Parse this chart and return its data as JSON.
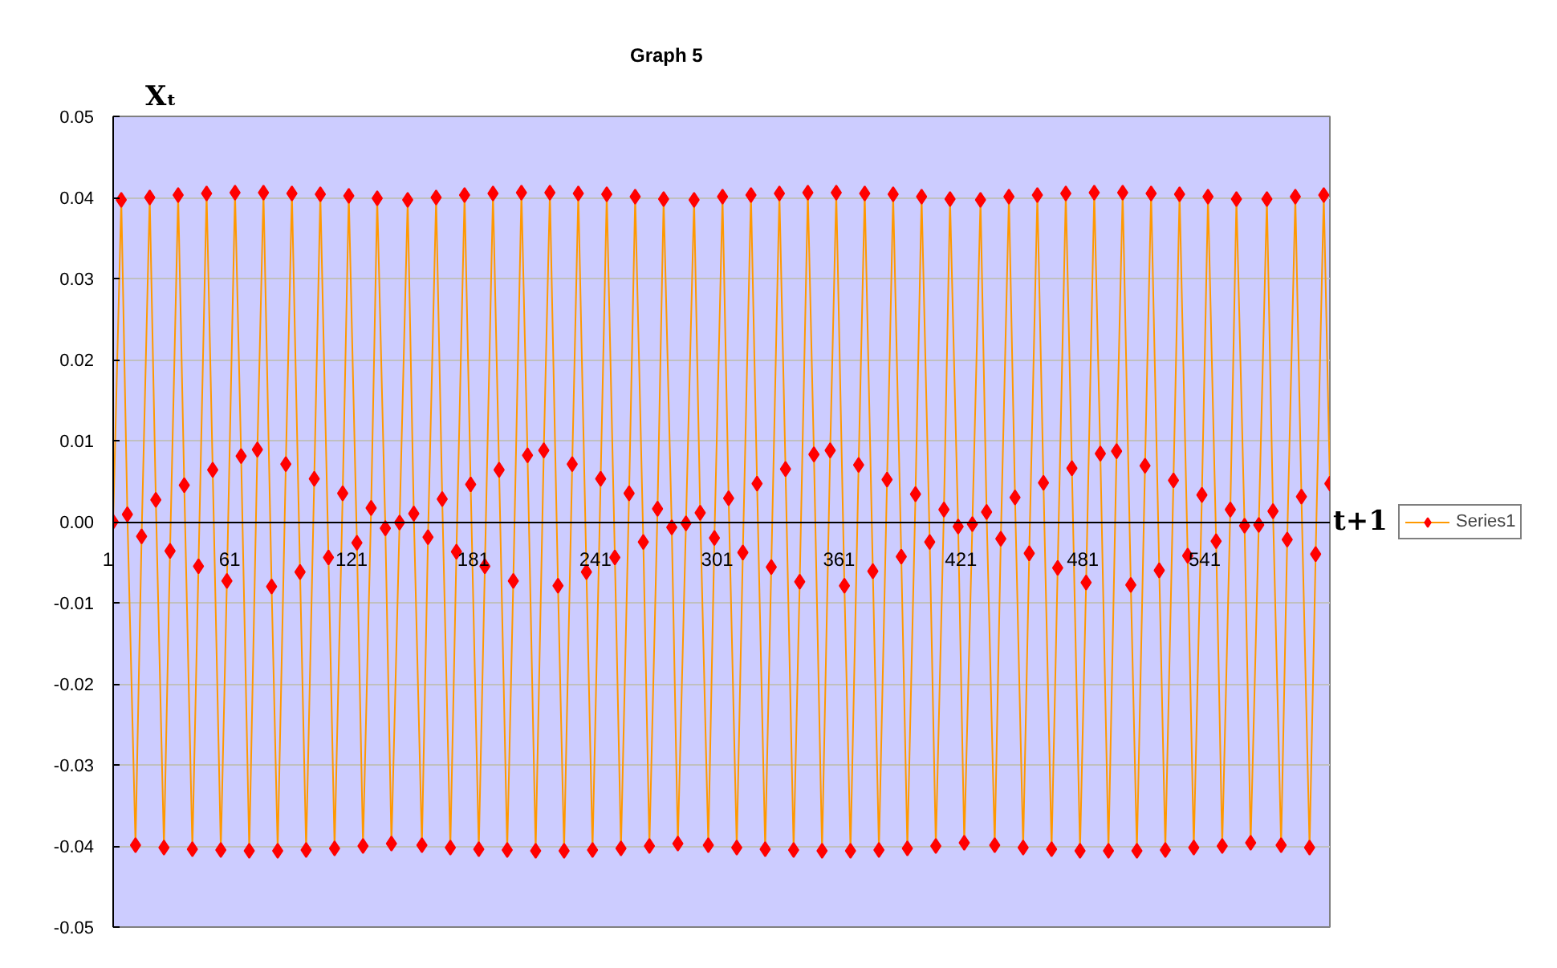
{
  "chart_data": {
    "type": "line",
    "title": "Graph 5",
    "xlabel": "t+1",
    "ylabel": "Xₜ",
    "x": [
      1,
      5,
      8,
      12,
      15,
      19,
      22,
      26,
      29,
      33,
      36,
      40,
      43,
      47,
      50,
      54,
      57,
      61,
      64,
      68,
      72,
      75,
      79,
      82,
      86,
      89,
      93,
      96,
      100,
      103,
      107,
      110,
      114,
      117,
      121,
      124,
      128,
      131,
      135,
      138,
      142,
      146,
      149,
      153,
      156,
      160,
      163,
      167,
      170,
      174,
      177,
      181,
      184,
      188,
      191,
      195,
      198,
      202,
      205,
      209,
      213,
      216,
      220,
      223,
      227,
      230,
      234,
      237,
      241,
      244,
      248,
      251,
      255,
      258,
      262,
      265,
      269,
      272,
      276,
      279,
      283,
      287,
      290,
      294,
      297,
      301,
      304,
      308,
      311,
      315,
      318,
      322,
      325,
      329,
      332,
      336,
      339,
      343,
      346,
      350,
      354,
      357,
      361,
      364,
      368,
      371,
      375,
      378,
      382,
      385,
      389,
      392,
      396,
      399,
      403,
      406,
      410,
      413,
      417,
      420,
      424,
      428,
      431,
      435,
      438,
      442,
      445,
      449,
      452,
      456,
      459,
      463,
      466,
      470,
      473,
      477,
      480,
      484,
      487,
      491,
      495,
      498,
      502,
      505,
      509,
      512,
      516,
      519,
      523,
      526,
      530,
      533,
      537,
      540,
      544,
      547,
      551,
      554,
      558,
      561,
      565,
      569,
      572,
      576,
      579,
      583,
      586,
      590,
      593,
      597,
      600
    ],
    "series": [
      {
        "name": "Series1",
        "color": "#ff9900",
        "colors": [
          "#ff0000",
          "#ff0000",
          "#ff0000",
          "#ff0000",
          "#ff0000",
          "#ff0000",
          "#ff0000",
          "#ff0000",
          "#ff0000",
          "#ff0000",
          "#ff0000",
          "#ff0000",
          "#ff0000",
          "#ff0000",
          "#ff0000",
          "#ff0000",
          "#ff0000",
          "#ff0000",
          "#ff0000",
          "#ff0000",
          "#ff0000",
          "#ff0000",
          "#ff0000",
          "#ff0000",
          "#ff0000",
          "#ff0000",
          "#ff0000",
          "#ff0000",
          "#ff0000",
          "#ff0000",
          "#ff0000",
          "#ff0000",
          "#ff0000",
          "#ff0000",
          "#ff0000",
          "#ff0000",
          "#ff0000",
          "#ff0000",
          "#ff0000",
          "#ff0000",
          "#ff0000",
          "#ff0000",
          "#ff0000",
          "#ff0000",
          "#ff0000",
          "#ff0000",
          "#ff0000",
          "#ff0000",
          "#ff0000",
          "#ff0000",
          "#ff0000",
          "#ff0000",
          "#ff0000",
          "#ff0000",
          "#ff0000",
          "#ff0000",
          "#ff0000",
          "#ff0000",
          "#ff0000",
          "#ff0000",
          "#ff0000",
          "#ff0000",
          "#ff0000",
          "#ff0000",
          "#ff0000",
          "#ff0000",
          "#ff0000",
          "#ff0000",
          "#ff0000",
          "#ff0000",
          "#ff0000",
          "#ff0000",
          "#ff0000",
          "#ff0000",
          "#ff0000",
          "#ff0000",
          "#ff0000",
          "#ff0000",
          "#ff0000",
          "#ff0000",
          "#ff0000",
          "#ff0000",
          "#ff0000",
          "#ff0000",
          "#ff0000",
          "#ff0000",
          "#ff0000",
          "#ff0000",
          "#ff0000",
          "#ff0000",
          "#ff0000",
          "#ff0000",
          "#ff0000",
          "#ff0000",
          "#ff0000",
          "#ff0000",
          "#ff0000",
          "#ff0000",
          "#ff0000",
          "#ff0000",
          "#ff0000",
          "#ff0000",
          "#ff0000",
          "#ff0000",
          "#ff0000",
          "#ff0000",
          "#ff0000",
          "#ff0000",
          "#ff0000",
          "#ff0000",
          "#ff0000",
          "#ff0000",
          "#ff0000",
          "#ff0000",
          "#ff0000",
          "#ff0000",
          "#ff0000",
          "#ff0000",
          "#ff0000",
          "#ff0000",
          "#ff0000",
          "#ff0000",
          "#ff0000",
          "#ff0000",
          "#ff0000",
          "#ff0000",
          "#ff0000",
          "#ff0000",
          "#ff0000",
          "#ff0000",
          "#ff0000",
          "#ff0000",
          "#ff0000",
          "#ff0000",
          "#ff0000",
          "#ff0000",
          "#ff0000",
          "#ff0000",
          "#ff0000",
          "#ff0000",
          "#ff0000",
          "#ff0000",
          "#ff0000",
          "#ff0000",
          "#ff0000",
          "#ff0000",
          "#ff0000",
          "#ff0000",
          "#ff0000",
          "#ff0000",
          "#ff0000",
          "#ff0000",
          "#ff0000",
          "#ff0000",
          "#ff0000",
          "#ff0000",
          "#ff0000",
          "#ff0000",
          "#ff0000",
          "#ff0000",
          "#ff0000",
          "#ff0000",
          "#ff0000",
          "#ff0000",
          "#ff0000",
          "#ff0000",
          "#ff0000",
          "#ff0000",
          "#ff0000",
          "#ff0000",
          "#ff0000"
        ],
        "values": [
          0,
          0.0397,
          0.0009,
          -0.0399,
          -0.0018,
          0.04,
          0.0027,
          -0.0402,
          -0.0036,
          0.0403,
          0.0045,
          -0.0404,
          -0.0055,
          0.0405,
          0.0064,
          -0.0405,
          -0.0073,
          0.0406,
          0.0081,
          -0.0406,
          0.0089,
          0.0406,
          -0.008,
          -0.0406,
          0.0071,
          0.0405,
          -0.0062,
          -0.0405,
          0.0053,
          0.0404,
          -0.0044,
          -0.0403,
          0.0035,
          0.0402,
          -0.0026,
          -0.04,
          0.0017,
          0.0399,
          -0.0008,
          -0.0397,
          -0.0001,
          0.0397,
          0.001,
          -0.0399,
          -0.0019,
          0.04,
          0.0028,
          -0.0402,
          -0.0037,
          0.0403,
          0.0046,
          -0.0404,
          -0.0055,
          0.0405,
          0.0064,
          -0.0405,
          -0.0073,
          0.0406,
          0.0082,
          -0.0406,
          0.0088,
          0.0406,
          -0.0079,
          -0.0406,
          0.0071,
          0.0405,
          -0.0062,
          -0.0405,
          0.0053,
          0.0404,
          -0.0044,
          -0.0403,
          0.0035,
          0.0401,
          -0.0025,
          -0.04,
          0.0016,
          0.0398,
          -0.0007,
          -0.0397,
          -0.0002,
          0.0397,
          0.0011,
          -0.0399,
          -0.002,
          0.0401,
          0.0029,
          -0.0402,
          -0.0038,
          0.0403,
          0.0047,
          -0.0404,
          -0.0056,
          0.0405,
          0.0065,
          -0.0405,
          -0.0074,
          0.0406,
          0.0083,
          -0.0406,
          0.0088,
          0.0406,
          -0.0079,
          -0.0406,
          0.007,
          0.0405,
          -0.0061,
          -0.0405,
          0.0052,
          0.0404,
          -0.0043,
          -0.0403,
          0.0034,
          0.0401,
          -0.0025,
          -0.04,
          0.0015,
          0.0398,
          -0.0006,
          -0.0396,
          -0.0003,
          0.0397,
          0.0012,
          -0.0399,
          -0.0021,
          0.0401,
          0.003,
          -0.0402,
          -0.0039,
          0.0403,
          0.0048,
          -0.0404,
          -0.0057,
          0.0405,
          0.0066,
          -0.0406,
          -0.0075,
          0.0406,
          0.0084,
          -0.0406,
          0.0087,
          0.0406,
          -0.0078,
          -0.0406,
          0.0069,
          0.0405,
          -0.006,
          -0.0405,
          0.0051,
          0.0404,
          -0.0042,
          -0.0402,
          0.0033,
          0.0401,
          -0.0024,
          -0.04,
          0.0015,
          0.0398,
          -0.0005,
          -0.0396,
          -0.0004,
          0.0398,
          0.0013,
          -0.0399,
          -0.0022,
          0.0401,
          0.0031,
          -0.0402,
          -0.004,
          0.0403,
          0.0047
        ]
      }
    ],
    "marker": "diamond",
    "line_style": "solid",
    "grid": "y",
    "legend": "right",
    "xlim": [
      1,
      600
    ],
    "xticks": [
      1,
      61,
      121,
      181,
      241,
      301,
      361,
      421,
      481,
      541
    ],
    "ylim": [
      -0.05,
      0.05
    ],
    "yticks": [
      -0.05,
      -0.04,
      -0.03,
      -0.02,
      -0.01,
      {
        "value": 0,
        "label": "0.00"
      },
      0.01,
      0.02,
      0.03,
      0.04,
      0.05
    ]
  }
}
